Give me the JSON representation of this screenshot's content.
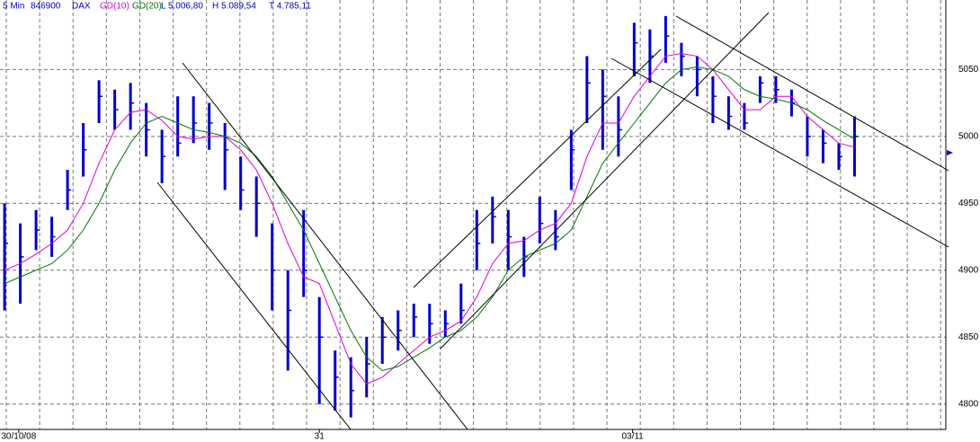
{
  "chart_data": {
    "type": "ohlc",
    "info": [
      "5 Min",
      "846900"
    ],
    "stats": [
      "L 5.006,80",
      "H 5.089,54",
      "T 4.785,11"
    ],
    "x": [
      0,
      1,
      2,
      3,
      4,
      5,
      6,
      7,
      8,
      9,
      10,
      11,
      12,
      13,
      14,
      15,
      16,
      17,
      18,
      19,
      20,
      21,
      22,
      23,
      24,
      25,
      26,
      27,
      28,
      29,
      30,
      31,
      32,
      33,
      34,
      35,
      36,
      37,
      38,
      39,
      40,
      41,
      42,
      43,
      44,
      45,
      46,
      47,
      48,
      49,
      50,
      51,
      52,
      53,
      54
    ],
    "price": {
      "name": "DAX",
      "color": "#0000cc",
      "high": [
        4950,
        4935,
        4945,
        4940,
        4975,
        5010,
        5042,
        5035,
        5040,
        5025,
        5005,
        5030,
        5030,
        5025,
        5010,
        4985,
        4970,
        4935,
        4900,
        4945,
        4880,
        4840,
        4835,
        4850,
        4865,
        4870,
        4875,
        4875,
        4870,
        4890,
        4945,
        4955,
        4945,
        4925,
        4955,
        4945,
        5005,
        5060,
        5050,
        5030,
        5085,
        5080,
        5090,
        5070,
        5060,
        5045,
        5030,
        5025,
        5045,
        5045,
        5035,
        5015,
        5005,
        4995,
        5015
      ],
      "low": [
        4870,
        4875,
        4915,
        4910,
        4945,
        4970,
        5010,
        5005,
        5005,
        4985,
        4965,
        4985,
        4995,
        4990,
        4960,
        4945,
        4925,
        4870,
        4825,
        4880,
        4800,
        4795,
        4790,
        4805,
        4830,
        4840,
        4850,
        4845,
        4850,
        4860,
        4900,
        4920,
        4900,
        4895,
        4920,
        4915,
        4960,
        5010,
        4990,
        4985,
        5045,
        5040,
        5055,
        5045,
        5030,
        5010,
        5005,
        5005,
        5025,
        5025,
        5015,
        4985,
        4980,
        4975,
        4970
      ],
      "close": [
        4920,
        4910,
        4930,
        4925,
        4960,
        4990,
        5030,
        5020,
        5025,
        5005,
        4985,
        4995,
        5010,
        5010,
        4990,
        4960,
        4950,
        4900,
        4870,
        4900,
        4850,
        4820,
        4810,
        4830,
        4850,
        4855,
        4865,
        4860,
        4860,
        4870,
        4920,
        4940,
        4925,
        4910,
        4935,
        4925,
        4990,
        5040,
        5030,
        5005,
        5070,
        5060,
        5075,
        5060,
        5050,
        5030,
        5015,
        5010,
        5040,
        5035,
        5025,
        5000,
        4995,
        4985,
        5000
      ]
    },
    "series": [
      {
        "name": "GD(10)",
        "color": "#dd00dd",
        "values": [
          4900,
          4905,
          4912,
          4920,
          4930,
          4950,
          4980,
          5005,
          5018,
          5020,
          5012,
          5000,
          4998,
          5000,
          5000,
          4990,
          4975,
          4950,
          4920,
          4895,
          4890,
          4860,
          4830,
          4815,
          4820,
          4830,
          4840,
          4850,
          4855,
          4862,
          4880,
          4905,
          4920,
          4922,
          4930,
          4935,
          4950,
          4985,
          5010,
          5010,
          5030,
          5045,
          5060,
          5062,
          5060,
          5050,
          5035,
          5020,
          5020,
          5030,
          5030,
          5015,
          5005,
          4995,
          4992
        ]
      },
      {
        "name": "GD(20)",
        "color": "#007700",
        "values": [
          4890,
          4895,
          4900,
          4905,
          4915,
          4930,
          4950,
          4975,
          4995,
          5010,
          5015,
          5010,
          5005,
          5003,
          5000,
          4995,
          4985,
          4970,
          4950,
          4930,
          4905,
          4880,
          4855,
          4835,
          4825,
          4828,
          4835,
          4842,
          4850,
          4855,
          4865,
          4880,
          4900,
          4910,
          4915,
          4920,
          4930,
          4955,
          4980,
          4995,
          5010,
          5025,
          5040,
          5050,
          5052,
          5050,
          5045,
          5035,
          5030,
          5028,
          5025,
          5020,
          5012,
          5005,
          4998
        ]
      }
    ],
    "xlim": [
      -0.29,
      59.8
    ],
    "xticks": [
      {
        "value": 0.9,
        "label": "30/10/08"
      },
      {
        "value": 20,
        "label": "31"
      },
      {
        "value": 39.9,
        "label": "03/11"
      }
    ],
    "xgrid": [
      0.11,
      2.23,
      4.35,
      6.47,
      8.59,
      10.71,
      12.83,
      14.95,
      17.07,
      19.19,
      21.31,
      23.43,
      25.55,
      27.67,
      29.79,
      31.91,
      34.03,
      36.15,
      38.27,
      40.39,
      42.51,
      44.63,
      46.75,
      48.87,
      50.99,
      53.11,
      55.23,
      57.35,
      59.47
    ],
    "ylim": [
      4781,
      5102
    ],
    "yticks": [
      4800,
      4850,
      4900,
      4950,
      5000,
      5050
    ],
    "grid": true
  }
}
